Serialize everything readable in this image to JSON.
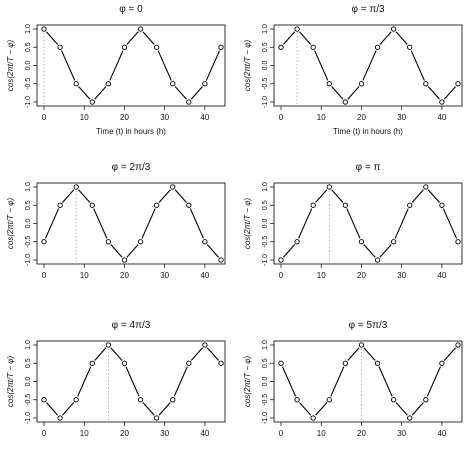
{
  "chart_data": [
    {
      "type": "line",
      "title": "φ = 0",
      "xlabel": "Time (t) in hours (h)",
      "ylabel": "cos(2πt/T − φ)",
      "xlim": [
        0,
        44
      ],
      "ylim": [
        -1,
        1
      ],
      "xticks": [
        "0",
        "10",
        "20",
        "30",
        "40"
      ],
      "yticks": [
        "-1.0",
        "-0.5",
        "0.0",
        "0.5",
        "1.0"
      ],
      "x": [
        0,
        4,
        8,
        12,
        16,
        20,
        24,
        28,
        32,
        36,
        40,
        44
      ],
      "y": [
        1,
        0.5,
        -0.5,
        -1,
        -0.5,
        0.5,
        1,
        0.5,
        -0.5,
        -1,
        -0.5,
        0.5
      ],
      "marker_x": 0
    },
    {
      "type": "line",
      "title": "φ = π/3",
      "xlabel": "Time (t) in hours (h)",
      "ylabel": "cos(2πt/T − φ)",
      "xlim": [
        0,
        44
      ],
      "ylim": [
        -1,
        1
      ],
      "xticks": [
        "0",
        "10",
        "20",
        "30",
        "40"
      ],
      "yticks": [
        "-1.0",
        "-0.5",
        "0.0",
        "0.5",
        "1.0"
      ],
      "x": [
        0,
        4,
        8,
        12,
        16,
        20,
        24,
        28,
        32,
        36,
        40,
        44
      ],
      "y": [
        0.5,
        1,
        0.5,
        -0.5,
        -1,
        -0.5,
        0.5,
        1,
        0.5,
        -0.5,
        -1,
        -0.5
      ],
      "marker_x": 4
    },
    {
      "type": "line",
      "title": "φ = 2π/3",
      "xlabel": "",
      "ylabel": "cos(2πt/T − φ)",
      "xlim": [
        0,
        44
      ],
      "ylim": [
        -1,
        1
      ],
      "xticks": [
        "0",
        "10",
        "20",
        "30",
        "40"
      ],
      "yticks": [
        "-1.0",
        "-0.5",
        "0.0",
        "0.5",
        "1.0"
      ],
      "x": [
        0,
        4,
        8,
        12,
        16,
        20,
        24,
        28,
        32,
        36,
        40,
        44
      ],
      "y": [
        -0.5,
        0.5,
        1,
        0.5,
        -0.5,
        -1,
        -0.5,
        0.5,
        1,
        0.5,
        -0.5,
        -1
      ],
      "marker_x": 8
    },
    {
      "type": "line",
      "title": "φ = π",
      "xlabel": "",
      "ylabel": "cos(2πt/T − φ)",
      "xlim": [
        0,
        44
      ],
      "ylim": [
        -1,
        1
      ],
      "xticks": [
        "0",
        "10",
        "20",
        "30",
        "40"
      ],
      "yticks": [
        "-1.0",
        "-0.5",
        "0.0",
        "0.5",
        "1.0"
      ],
      "x": [
        0,
        4,
        8,
        12,
        16,
        20,
        24,
        28,
        32,
        36,
        40,
        44
      ],
      "y": [
        -1,
        -0.5,
        0.5,
        1,
        0.5,
        -0.5,
        -1,
        -0.5,
        0.5,
        1,
        0.5,
        -0.5
      ],
      "marker_x": 12
    },
    {
      "type": "line",
      "title": "φ = 4π/3",
      "xlabel": "",
      "ylabel": "cos(2πt/T − φ)",
      "xlim": [
        0,
        44
      ],
      "ylim": [
        -1,
        1
      ],
      "xticks": [
        "0",
        "10",
        "20",
        "30",
        "40"
      ],
      "yticks": [
        "-1.0",
        "-0.5",
        "0.0",
        "0.5",
        "1.0"
      ],
      "x": [
        0,
        4,
        8,
        12,
        16,
        20,
        24,
        28,
        32,
        36,
        40,
        44
      ],
      "y": [
        -0.5,
        -1,
        -0.5,
        0.5,
        1,
        0.5,
        -0.5,
        -1,
        -0.5,
        0.5,
        1,
        0.5
      ],
      "marker_x": 16
    },
    {
      "type": "line",
      "title": "φ = 5π/3",
      "xlabel": "",
      "ylabel": "cos(2πt/T − φ)",
      "xlim": [
        0,
        44
      ],
      "ylim": [
        -1,
        1
      ],
      "xticks": [
        "0",
        "10",
        "20",
        "30",
        "40"
      ],
      "yticks": [
        "-1.0",
        "-0.5",
        "0.0",
        "0.5",
        "1.0"
      ],
      "x": [
        0,
        4,
        8,
        12,
        16,
        20,
        24,
        28,
        32,
        36,
        40,
        44
      ],
      "y": [
        0.5,
        -0.5,
        -1,
        -0.5,
        0.5,
        1,
        0.5,
        -0.5,
        -1,
        -0.5,
        0.5,
        1
      ],
      "marker_x": 20
    }
  ],
  "colors": {
    "line": "#000000",
    "marker": "#000000",
    "guide": "#999999"
  }
}
